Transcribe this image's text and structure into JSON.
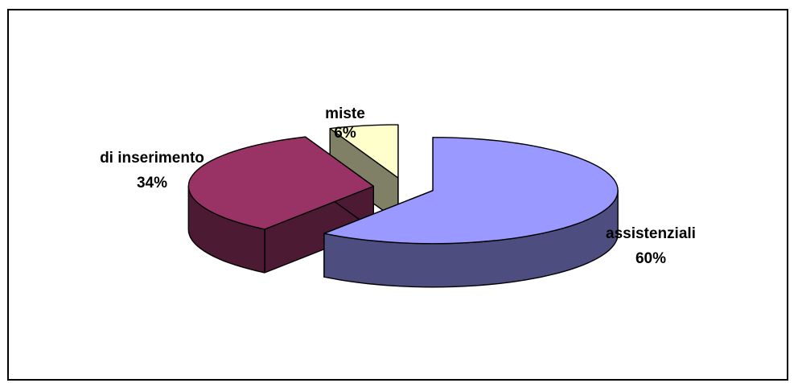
{
  "chart_data": {
    "type": "pie",
    "style": "3d-exploded",
    "title": "",
    "slices": [
      {
        "label": "assistenziali",
        "value": 60,
        "percent_label": "60%",
        "top_color": "#9999ff",
        "side_color": "#4d4d80"
      },
      {
        "label": "di inserimento",
        "value": 34,
        "percent_label": "34%",
        "top_color": "#993366",
        "side_color": "#4d1a33"
      },
      {
        "label": "miste",
        "value": 6,
        "percent_label": "6%",
        "top_color": "#ffffcc",
        "side_color": "#808066"
      }
    ],
    "legend": "none",
    "border": true
  }
}
